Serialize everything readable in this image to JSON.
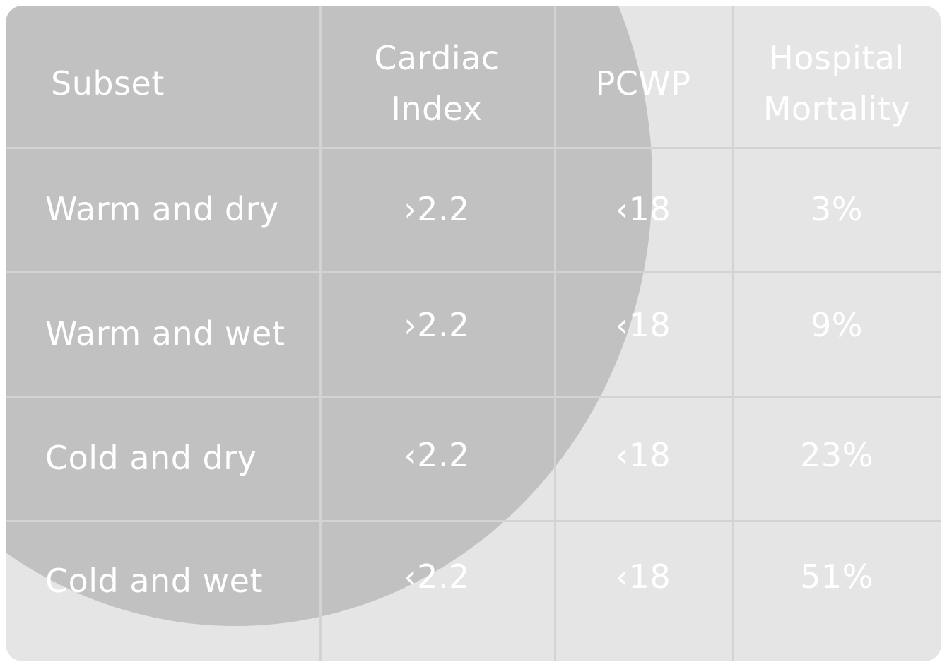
{
  "table": {
    "headers": {
      "subset": "Subset",
      "cardiac_index": [
        "Cardiac",
        "Index"
      ],
      "pcwp": "PCWP",
      "mortality": [
        "Hospital",
        "Mortality"
      ]
    },
    "rows": [
      {
        "subset": "Warm and dry",
        "cardiac_index": "›2.2",
        "pcwp": "‹18",
        "mortality": "3%"
      },
      {
        "subset": "Warm and wet",
        "cardiac_index": "›2.2",
        "pcwp": "‹18",
        "mortality": "9%"
      },
      {
        "subset": "Cold and dry",
        "cardiac_index": "‹2.2",
        "pcwp": "‹18",
        "mortality": "23%"
      },
      {
        "subset": "Cold and wet",
        "cardiac_index": "‹2.2",
        "pcwp": "‹18",
        "mortality": "51%"
      }
    ]
  },
  "colors": {
    "card": "#e5e5e5",
    "circle_overlay": "#c1c1c1",
    "grid": "#d3d3d3",
    "text": "#ffffff"
  }
}
